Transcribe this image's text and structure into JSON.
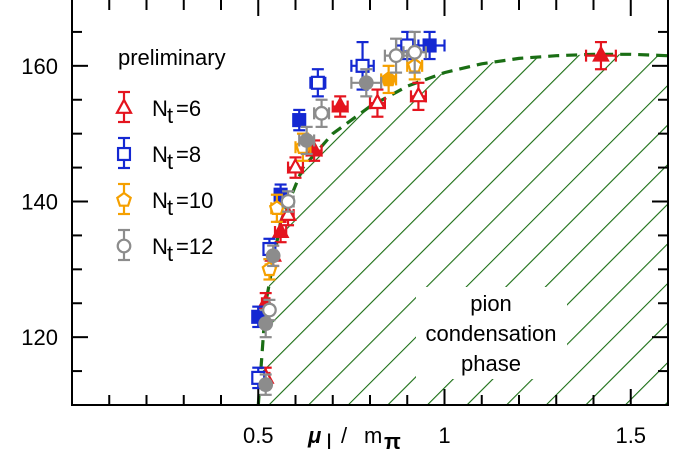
{
  "chart_data": {
    "type": "scatter",
    "title": "",
    "xlabel": "μI / mπ",
    "xlabel_parts": {
      "mu": "μ",
      "mu_sub": "I",
      "m": "m",
      "m_sub": "π"
    },
    "ylabel": "",
    "xlim": [
      0.0,
      1.6
    ],
    "ylim": [
      110,
      170
    ],
    "x_ticks": [
      0.5,
      1,
      1.5
    ],
    "x_tick_labels": [
      "0.5",
      "1",
      "1.5"
    ],
    "y_ticks": [
      120,
      140,
      160
    ],
    "y_tick_labels": [
      "120",
      "140",
      "160"
    ],
    "grid": false,
    "legend_title": "preliminary",
    "legend_position": "top-left",
    "colors": {
      "Nt6": "#e4141e",
      "Nt8": "#1428d2",
      "Nt10": "#f5a000",
      "Nt12": "#8c8c8c",
      "phase": "#1a6e14"
    },
    "series": [
      {
        "name": "Nt=6",
        "label_main": "N",
        "label_sub": "t",
        "label_value": "=6",
        "marker": "triangle",
        "color": "#e4141e",
        "points": [
          {
            "x": 0.52,
            "y": 114,
            "xerr": 0.01,
            "yerr": 1.5,
            "filled": false
          },
          {
            "x": 0.52,
            "y": 125,
            "xerr": 0.01,
            "yerr": 1.5,
            "filled": true
          },
          {
            "x": 0.54,
            "y": 132,
            "xerr": 0.01,
            "yerr": 1.5,
            "filled": false
          },
          {
            "x": 0.56,
            "y": 135.5,
            "xerr": 0.015,
            "yerr": 1.5,
            "filled": true
          },
          {
            "x": 0.58,
            "y": 138,
            "xerr": 0.015,
            "yerr": 1.5,
            "filled": false
          },
          {
            "x": 0.6,
            "y": 145,
            "xerr": 0.02,
            "yerr": 1.5,
            "filled": false
          },
          {
            "x": 0.65,
            "y": 147.5,
            "xerr": 0.02,
            "yerr": 1.5,
            "filled": true
          },
          {
            "x": 0.72,
            "y": 154,
            "xerr": 0.02,
            "yerr": 1.5,
            "filled": true
          },
          {
            "x": 0.82,
            "y": 154.5,
            "xerr": 0.02,
            "yerr": 2.0,
            "filled": false
          },
          {
            "x": 0.93,
            "y": 155.5,
            "xerr": 0.02,
            "yerr": 2.0,
            "filled": false
          },
          {
            "x": 1.42,
            "y": 161.5,
            "xerr": 0.04,
            "yerr": 2.0,
            "filled": true
          }
        ]
      },
      {
        "name": "Nt=8",
        "label_main": "N",
        "label_sub": "t",
        "label_value": "=8",
        "marker": "square",
        "color": "#1428d2",
        "points": [
          {
            "x": 0.5,
            "y": 114,
            "xerr": 0.01,
            "yerr": 1.5,
            "filled": false
          },
          {
            "x": 0.5,
            "y": 123,
            "xerr": 0.01,
            "yerr": 1.5,
            "filled": true
          },
          {
            "x": 0.53,
            "y": 133,
            "xerr": 0.01,
            "yerr": 1.5,
            "filled": false
          },
          {
            "x": 0.56,
            "y": 141,
            "xerr": 0.01,
            "yerr": 1.5,
            "filled": true
          },
          {
            "x": 0.61,
            "y": 152,
            "xerr": 0.015,
            "yerr": 1.5,
            "filled": true
          },
          {
            "x": 0.66,
            "y": 157.5,
            "xerr": 0.02,
            "yerr": 2.0,
            "filled": false
          },
          {
            "x": 0.78,
            "y": 160,
            "xerr": 0.03,
            "yerr": 3.5,
            "filled": false
          },
          {
            "x": 0.9,
            "y": 163,
            "xerr": 0.03,
            "yerr": 2.0,
            "filled": false
          },
          {
            "x": 0.96,
            "y": 163,
            "xerr": 0.04,
            "yerr": 2.0,
            "filled": true
          }
        ]
      },
      {
        "name": "Nt=10",
        "label_main": "N",
        "label_sub": "t",
        "label_value": "=10",
        "marker": "pentagon",
        "color": "#f5a000",
        "points": [
          {
            "x": 0.53,
            "y": 130,
            "xerr": 0.01,
            "yerr": 1.5,
            "filled": false
          },
          {
            "x": 0.55,
            "y": 139,
            "xerr": 0.015,
            "yerr": 2.0,
            "filled": false
          },
          {
            "x": 0.62,
            "y": 148,
            "xerr": 0.02,
            "yerr": 2.0,
            "filled": false
          },
          {
            "x": 0.85,
            "y": 158,
            "xerr": 0.02,
            "yerr": 2.0,
            "filled": true
          },
          {
            "x": 0.92,
            "y": 160,
            "xerr": 0.02,
            "yerr": 2.0,
            "filled": false
          }
        ]
      },
      {
        "name": "Nt=12",
        "label_main": "N",
        "label_sub": "t",
        "label_value": "=12",
        "marker": "circle",
        "color": "#8c8c8c",
        "points": [
          {
            "x": 0.52,
            "y": 113,
            "xerr": 0.01,
            "yerr": 1.5,
            "filled": true
          },
          {
            "x": 0.52,
            "y": 122,
            "xerr": 0.01,
            "yerr": 2.0,
            "filled": true
          },
          {
            "x": 0.53,
            "y": 124,
            "xerr": 0.01,
            "yerr": 1.5,
            "filled": false
          },
          {
            "x": 0.54,
            "y": 132,
            "xerr": 0.01,
            "yerr": 1.5,
            "filled": true
          },
          {
            "x": 0.58,
            "y": 140,
            "xerr": 0.015,
            "yerr": 1.5,
            "filled": false
          },
          {
            "x": 0.63,
            "y": 149,
            "xerr": 0.02,
            "yerr": 2.0,
            "filled": true
          },
          {
            "x": 0.67,
            "y": 153,
            "xerr": 0.02,
            "yerr": 2.0,
            "filled": false
          },
          {
            "x": 0.79,
            "y": 157.5,
            "xerr": 0.04,
            "yerr": 2.0,
            "filled": true
          },
          {
            "x": 0.87,
            "y": 161.5,
            "xerr": 0.03,
            "yerr": 2.5,
            "filled": false
          },
          {
            "x": 0.92,
            "y": 162,
            "xerr": 0.03,
            "yerr": 3.0,
            "filled": false
          }
        ]
      }
    ],
    "phase_boundary": {
      "color": "#1a6e14",
      "points": [
        [
          0.5,
          110
        ],
        [
          0.52,
          125
        ],
        [
          0.56,
          137
        ],
        [
          0.62,
          145
        ],
        [
          0.7,
          150
        ],
        [
          0.8,
          154
        ],
        [
          0.9,
          157
        ],
        [
          1.0,
          159
        ],
        [
          1.1,
          160.3
        ],
        [
          1.2,
          161.1
        ],
        [
          1.3,
          161.5
        ],
        [
          1.4,
          161.7
        ],
        [
          1.5,
          161.7
        ],
        [
          1.6,
          161.5
        ]
      ]
    },
    "annotation": [
      "pion",
      "condensation",
      "phase"
    ]
  }
}
